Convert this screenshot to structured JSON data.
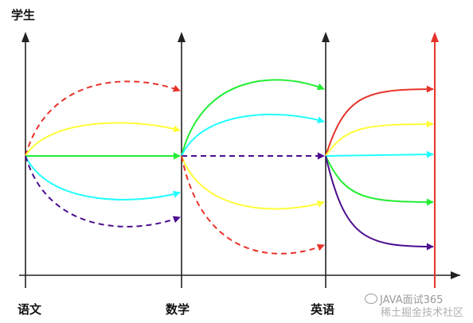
{
  "y_axis_label": "学生",
  "x_labels": [
    "语文",
    "数学",
    "英语"
  ],
  "watermark": {
    "line1": "JAVA面试365",
    "line2": "稀土掘金技术社区"
  },
  "colors": {
    "axis": "#222222",
    "final_axis": "#e8332a",
    "red": "#e8332a",
    "yellow": "#ffff3a",
    "green": "#22ee33",
    "cyan": "#22ffff",
    "purple": "#4b0d8f"
  },
  "flows": [
    {
      "from": 0,
      "to": 1,
      "color": "red",
      "dashed": true,
      "end_level": "top"
    },
    {
      "from": 0,
      "to": 1,
      "color": "yellow",
      "dashed": false,
      "end_level": "upper"
    },
    {
      "from": 0,
      "to": 1,
      "color": "green",
      "dashed": false,
      "end_level": "middle"
    },
    {
      "from": 0,
      "to": 1,
      "color": "cyan",
      "dashed": false,
      "end_level": "lower"
    },
    {
      "from": 0,
      "to": 1,
      "color": "purple",
      "dashed": true,
      "end_level": "bottom"
    },
    {
      "from": 1,
      "to": 2,
      "color": "green",
      "dashed": false,
      "end_level": "top"
    },
    {
      "from": 1,
      "to": 2,
      "color": "cyan",
      "dashed": false,
      "end_level": "upper"
    },
    {
      "from": 1,
      "to": 2,
      "color": "purple",
      "dashed": true,
      "end_level": "middle"
    },
    {
      "from": 1,
      "to": 2,
      "color": "yellow",
      "dashed": false,
      "end_level": "lower"
    },
    {
      "from": 1,
      "to": 2,
      "color": "red",
      "dashed": true,
      "end_level": "bottom"
    },
    {
      "from": 2,
      "to": 3,
      "color": "red",
      "dashed": false,
      "end_level": "top"
    },
    {
      "from": 2,
      "to": 3,
      "color": "yellow",
      "dashed": false,
      "end_level": "upper"
    },
    {
      "from": 2,
      "to": 3,
      "color": "cyan",
      "dashed": false,
      "end_level": "middle"
    },
    {
      "from": 2,
      "to": 3,
      "color": "green",
      "dashed": false,
      "end_level": "lower"
    },
    {
      "from": 2,
      "to": 3,
      "color": "purple",
      "dashed": false,
      "end_level": "bottom"
    }
  ]
}
